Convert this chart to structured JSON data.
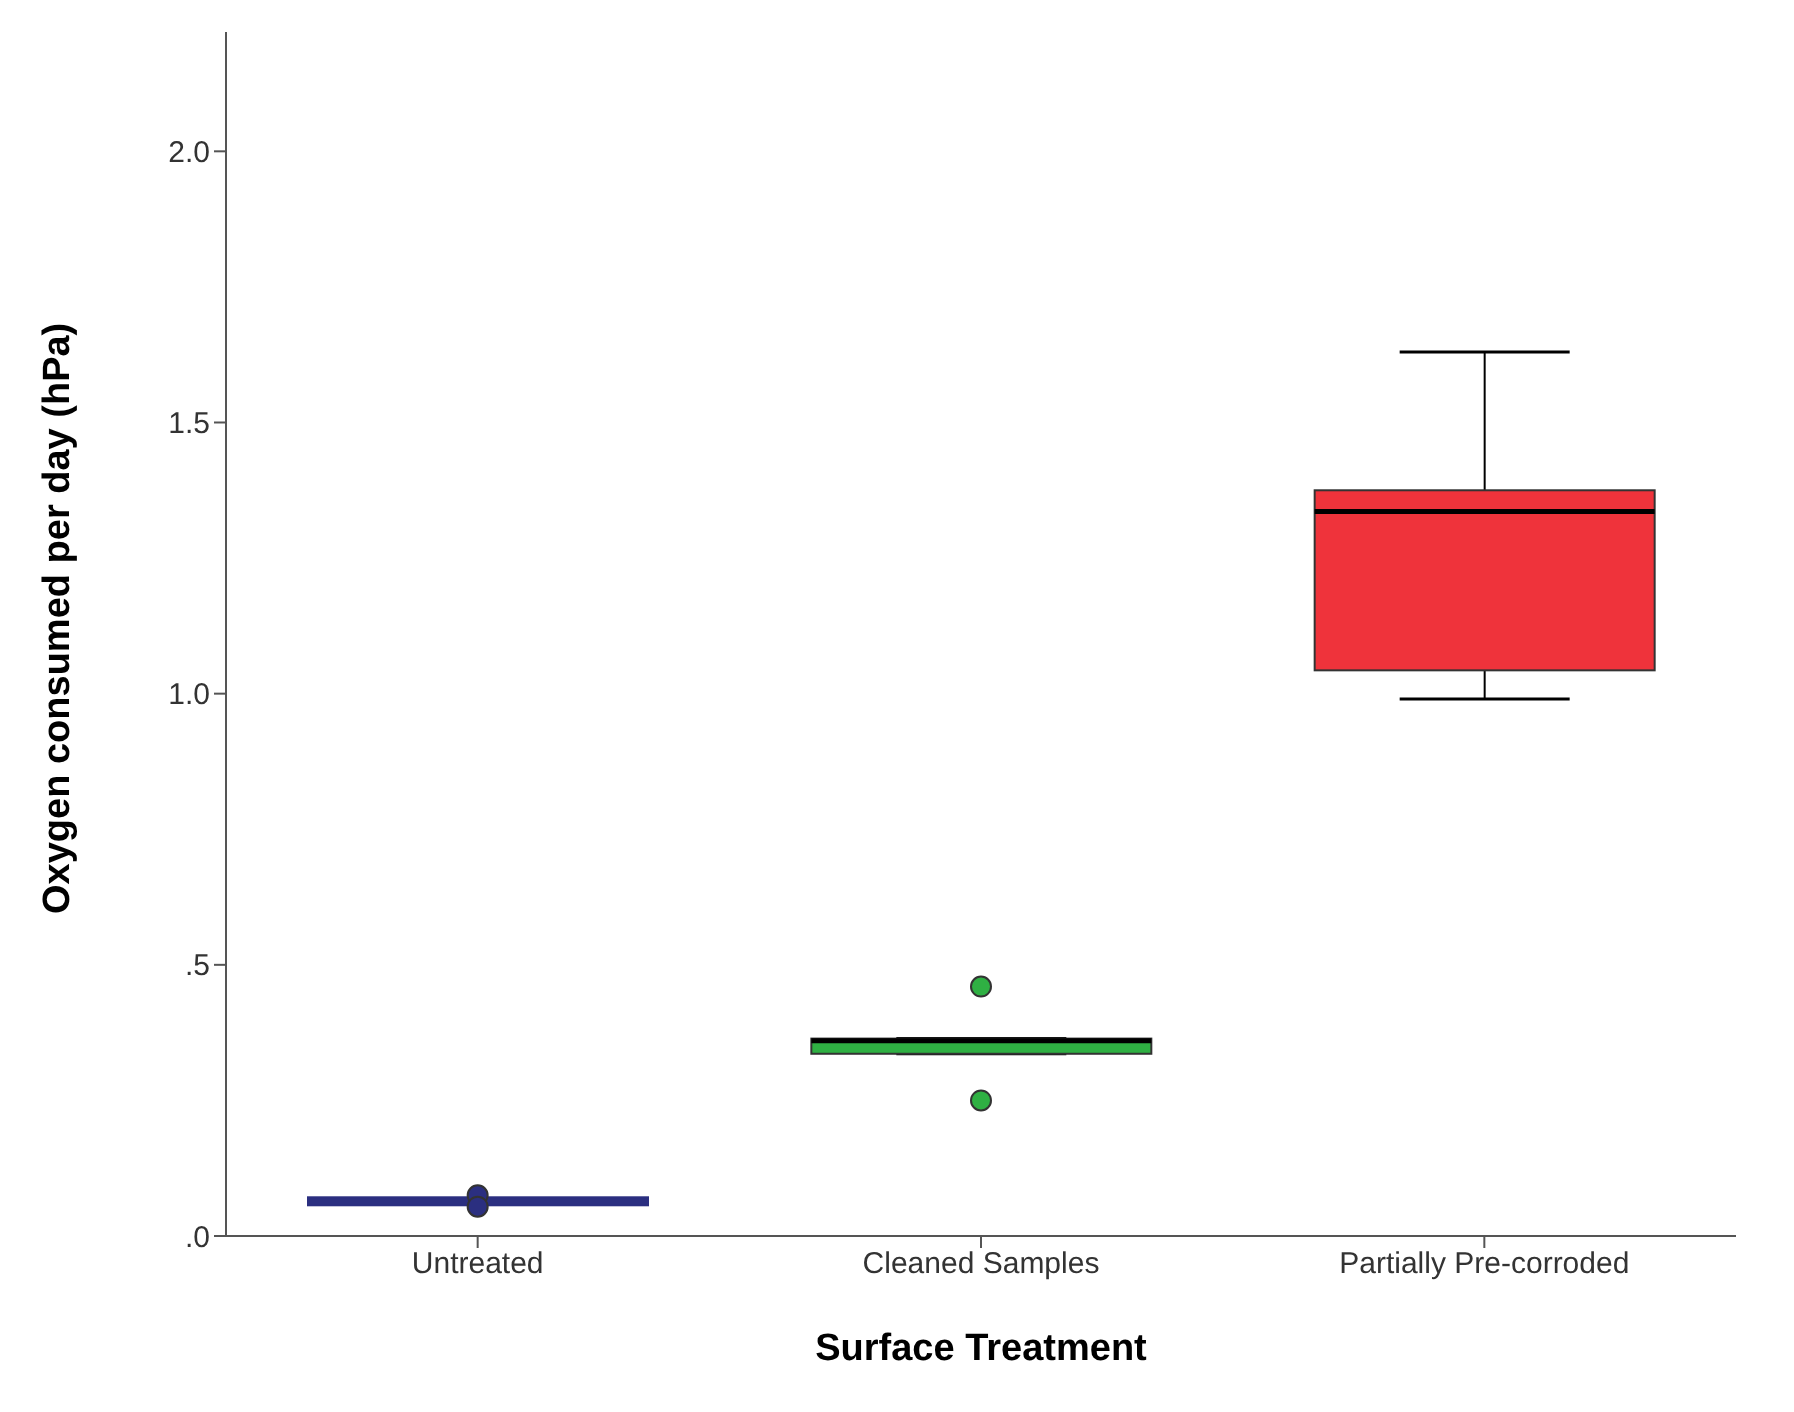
{
  "chart_data": {
    "type": "box",
    "xlabel": "Surface Treatment",
    "ylabel": "Oxygen consumed per day (hPa)",
    "categories": [
      "Untreated",
      "Cleaned Samples",
      "Partially Pre-corroded"
    ],
    "colors": [
      "#2b2f80",
      "#2fb043",
      "#ef333b"
    ],
    "boxes": [
      {
        "low": 0.064,
        "q1": 0.064,
        "median": 0.064,
        "q3": 0.064,
        "high": 0.064,
        "outliers": [
          0.075,
          0.054
        ]
      },
      {
        "low": 0.336,
        "q1": 0.336,
        "median": 0.36,
        "q3": 0.364,
        "high": 0.364,
        "outliers": [
          0.46,
          0.25
        ]
      },
      {
        "low": 0.99,
        "q1": 1.043,
        "median": 1.336,
        "q3": 1.375,
        "high": 1.63
      }
    ],
    "ylim": [
      0,
      2.22
    ],
    "yticks": [
      {
        "value": 0,
        "label": ".0"
      },
      {
        "value": 0.5,
        "label": ".5"
      },
      {
        "value": 1,
        "label": "1.0"
      },
      {
        "value": 1.5,
        "label": "1.5"
      },
      {
        "value": 2,
        "label": "2.0"
      }
    ],
    "grid": false,
    "legend": false
  }
}
